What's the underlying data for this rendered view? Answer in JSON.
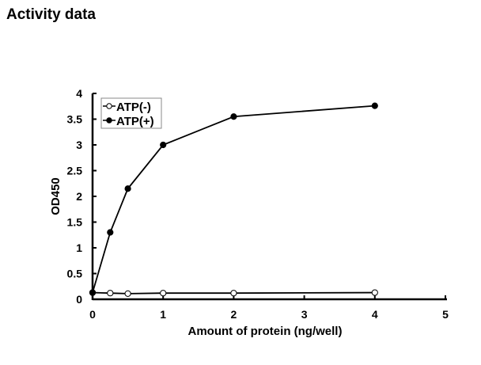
{
  "page_title": "Activity data",
  "chart_data": {
    "type": "line",
    "title": "",
    "xlabel": "Amount of protein (ng/well)",
    "ylabel": "OD450",
    "xlim": [
      0,
      5
    ],
    "ylim": [
      0,
      4
    ],
    "xticks": [
      "0",
      "1",
      "2",
      "3",
      "4",
      "5"
    ],
    "yticks": [
      "0",
      "0.5",
      "1",
      "1.5",
      "2",
      "2.5",
      "3",
      "3.5",
      "4"
    ],
    "legend_position": "top-left",
    "grid": false,
    "series": [
      {
        "name": "ATP(-)",
        "marker": "open-circle",
        "x": [
          0,
          0.25,
          0.5,
          1,
          2,
          4
        ],
        "y": [
          0.13,
          0.12,
          0.11,
          0.12,
          0.12,
          0.13
        ]
      },
      {
        "name": "ATP(+)",
        "marker": "filled-circle",
        "x": [
          0,
          0.25,
          0.5,
          1,
          2,
          4
        ],
        "y": [
          0.13,
          1.3,
          2.15,
          3.0,
          3.55,
          3.76
        ]
      }
    ]
  }
}
